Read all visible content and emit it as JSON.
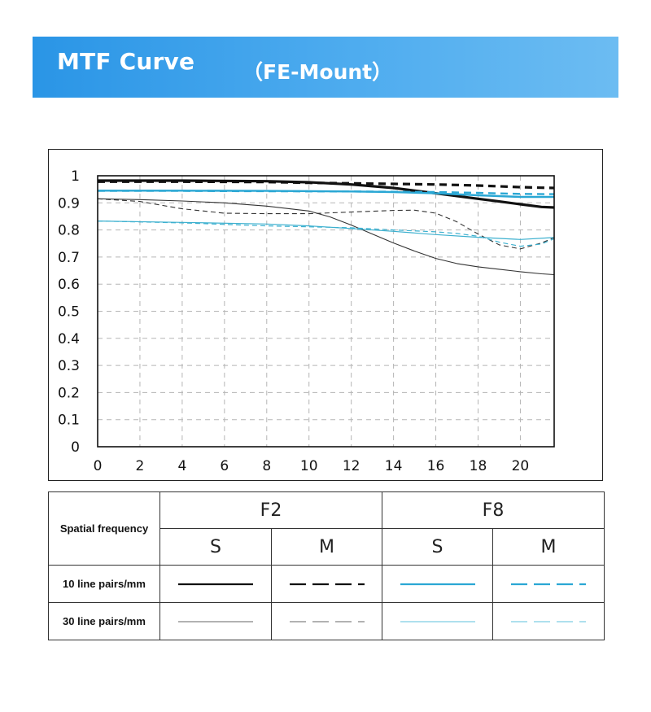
{
  "header": {
    "title": "MTF Curve",
    "subtitle": "（FE-Mount）"
  },
  "chart_data": {
    "type": "line",
    "xlim": [
      0,
      21.6
    ],
    "ylim": [
      0,
      1
    ],
    "x_ticks": [
      "0",
      "2",
      "4",
      "6",
      "8",
      "10",
      "12",
      "14",
      "16",
      "18",
      "20"
    ],
    "y_ticks": [
      "1",
      "0.9",
      "0.8",
      "0.7",
      "0.6",
      "0.5",
      "0.4",
      "0.3",
      "0.2",
      "0.1",
      "0"
    ],
    "grid": true,
    "series": [
      {
        "name": "F2 S 10 line pairs/mm",
        "color": "#111111",
        "width": 3.2,
        "dash": "",
        "x": [
          0,
          4,
          8,
          10,
          12,
          14,
          16,
          18,
          19,
          20,
          21,
          21.6
        ],
        "y": [
          0.982,
          0.982,
          0.98,
          0.976,
          0.968,
          0.955,
          0.935,
          0.915,
          0.905,
          0.895,
          0.885,
          0.883
        ]
      },
      {
        "name": "F2 M 10 line pairs/mm",
        "color": "#111111",
        "width": 3.2,
        "dash": "9,6",
        "x": [
          0,
          4,
          8,
          10,
          12,
          14,
          16,
          18,
          20,
          21,
          21.6
        ],
        "y": [
          0.978,
          0.978,
          0.977,
          0.974,
          0.972,
          0.97,
          0.968,
          0.964,
          0.958,
          0.956,
          0.955
        ]
      },
      {
        "name": "F8 S 10 line pairs/mm",
        "color": "#2aa7d4",
        "width": 2.4,
        "dash": "",
        "x": [
          0,
          4,
          8,
          12,
          14,
          16,
          18,
          20,
          21.6
        ],
        "y": [
          0.945,
          0.945,
          0.944,
          0.942,
          0.94,
          0.935,
          0.928,
          0.922,
          0.922
        ]
      },
      {
        "name": "F8 M 10 line pairs/mm",
        "color": "#2aa7d4",
        "width": 2.4,
        "dash": "9,6",
        "x": [
          0,
          4,
          8,
          12,
          16,
          18,
          20,
          21.6
        ],
        "y": [
          0.944,
          0.944,
          0.943,
          0.942,
          0.94,
          0.937,
          0.933,
          0.932
        ]
      },
      {
        "name": "F2 S 30 line pairs/mm",
        "color": "#333333",
        "width": 1.1,
        "dash": "",
        "x": [
          0,
          2,
          4,
          6,
          8,
          10,
          11,
          12,
          13,
          14,
          15,
          16,
          17,
          18,
          19,
          20,
          21,
          21.6
        ],
        "y": [
          0.915,
          0.912,
          0.907,
          0.9,
          0.888,
          0.87,
          0.848,
          0.818,
          0.785,
          0.752,
          0.722,
          0.695,
          0.676,
          0.664,
          0.655,
          0.646,
          0.638,
          0.635
        ]
      },
      {
        "name": "F2 M 30 line pairs/mm",
        "color": "#333333",
        "width": 1.1,
        "dash": "6,4",
        "x": [
          0,
          2,
          4,
          6,
          8,
          10,
          12,
          14,
          15,
          16,
          17,
          18,
          19,
          20,
          21,
          21.6
        ],
        "y": [
          0.915,
          0.905,
          0.878,
          0.862,
          0.86,
          0.86,
          0.866,
          0.872,
          0.873,
          0.862,
          0.83,
          0.785,
          0.745,
          0.73,
          0.752,
          0.772
        ]
      },
      {
        "name": "F8 S 30 line pairs/mm",
        "color": "#3cb0cf",
        "width": 1.2,
        "dash": "",
        "x": [
          0,
          4,
          8,
          10,
          12,
          14,
          16,
          18,
          20,
          21.6
        ],
        "y": [
          0.833,
          0.828,
          0.822,
          0.815,
          0.805,
          0.795,
          0.783,
          0.773,
          0.765,
          0.772
        ]
      },
      {
        "name": "F8 M 30 line pairs/mm",
        "color": "#3cb0cf",
        "width": 1.2,
        "dash": "6,4",
        "x": [
          0,
          4,
          8,
          12,
          14,
          16,
          17,
          18,
          19,
          20,
          21,
          21.6
        ],
        "y": [
          0.833,
          0.826,
          0.815,
          0.808,
          0.8,
          0.793,
          0.787,
          0.777,
          0.755,
          0.74,
          0.748,
          0.768
        ]
      }
    ]
  },
  "legend_table": {
    "row_header": "Spatial frequency",
    "groups": [
      "F2",
      "F8"
    ],
    "subs": [
      "S",
      "M",
      "S",
      "M"
    ],
    "rows": [
      {
        "label": "10 line pairs/mm",
        "samples": [
          {
            "color": "#111111",
            "width": 2.2,
            "dash": ""
          },
          {
            "color": "#111111",
            "width": 2.2,
            "dash": "20,8"
          },
          {
            "color": "#2aa7d4",
            "width": 2.2,
            "dash": ""
          },
          {
            "color": "#2aa7d4",
            "width": 2.2,
            "dash": "20,8"
          }
        ]
      },
      {
        "label": "30 line pairs/mm",
        "samples": [
          {
            "color": "#666666",
            "width": 1,
            "dash": ""
          },
          {
            "color": "#666666",
            "width": 1,
            "dash": "20,8"
          },
          {
            "color": "#5cc0dd",
            "width": 1,
            "dash": ""
          },
          {
            "color": "#5cc0dd",
            "width": 1,
            "dash": "20,8"
          }
        ]
      }
    ]
  }
}
